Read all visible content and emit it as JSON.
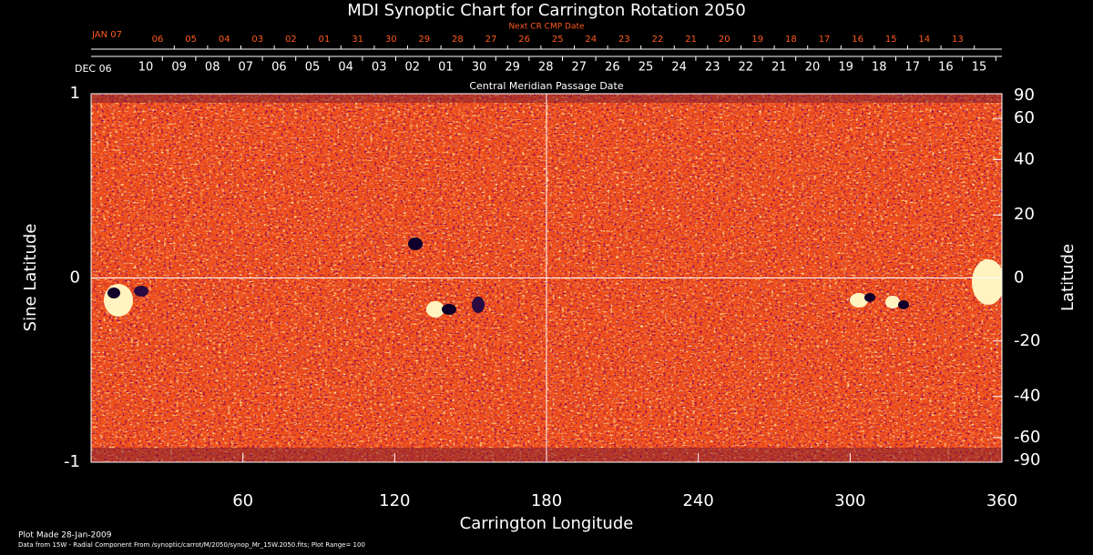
{
  "chart_data": {
    "type": "synoptic-map",
    "title": "MDI Synoptic Chart for Carrington Rotation 2050",
    "top_axis_label": "Next CR CMP Date",
    "top_axis_month": "JAN 07",
    "top_axis_dates": [
      "06",
      "05",
      "04",
      "03",
      "02",
      "01",
      "31",
      "30",
      "29",
      "28",
      "27",
      "26",
      "25",
      "24",
      "23",
      "22",
      "21",
      "20",
      "19",
      "18",
      "17",
      "16",
      "15",
      "14",
      "13"
    ],
    "top_axis_color": "#ff5a1e",
    "date_axis_label": "Central Meridian Passage Date",
    "date_axis_month": "DEC 06",
    "date_axis_dates": [
      "10",
      "09",
      "08",
      "07",
      "06",
      "05",
      "04",
      "03",
      "02",
      "01",
      "30",
      "29",
      "28",
      "27",
      "26",
      "25",
      "24",
      "23",
      "22",
      "21",
      "20",
      "19",
      "18",
      "17",
      "16",
      "15"
    ],
    "xlabel": "Carrington Longitude",
    "ylabel": "Sine Latitude",
    "y2label": "Latitude",
    "xlim": [
      0,
      360
    ],
    "xticks": [
      60,
      120,
      180,
      240,
      300,
      360
    ],
    "ylim": [
      -1,
      1
    ],
    "yticks": [
      -1,
      0,
      1
    ],
    "y2lim": [
      -90,
      90
    ],
    "y2_scale": "sine",
    "y2ticks": [
      90,
      60,
      40,
      20,
      0,
      -20,
      -40,
      -60,
      -90
    ],
    "footer": [
      "Plot Made 28-Jan-2009",
      "Data from 15W - Radial Component From /synoptic/carrot/M/2050/synop_Mr_15W.2050.fits; Plot Range=  100"
    ]
  }
}
